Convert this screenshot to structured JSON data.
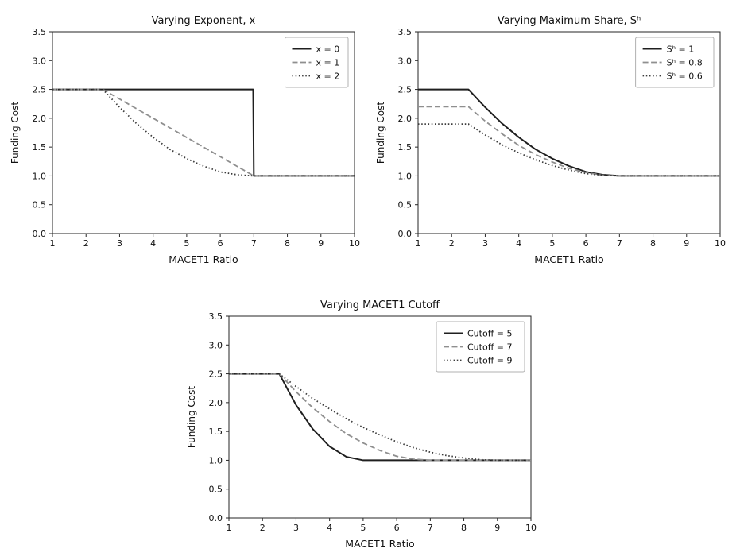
{
  "figure": {
    "background": "#ffffff",
    "text_color": "#111111",
    "spine_color": "#262626",
    "legend_border_color": "#b0b0b0"
  },
  "chart_data": [
    {
      "type": "line",
      "title": "Varying Exponent, x",
      "xlabel": "MACET1 Ratio",
      "ylabel": "Funding Cost",
      "xlim": [
        1,
        10
      ],
      "ylim": [
        0,
        3.5
      ],
      "grid": false,
      "legend_position": "upper right",
      "xticks": [
        1,
        2,
        3,
        4,
        5,
        6,
        7,
        8,
        9,
        10
      ],
      "xtick_labels": [
        "1",
        "2",
        "3",
        "4",
        "5",
        "6",
        "7",
        "8",
        "9",
        "10"
      ],
      "yticks": [
        0,
        0.5,
        1,
        1.5,
        2,
        2.5,
        3,
        3.5
      ],
      "ytick_labels": [
        "0.0",
        "0.5",
        "1.0",
        "1.5",
        "2.0",
        "2.5",
        "3.0",
        "3.5"
      ],
      "series": [
        {
          "name": "x = 0",
          "style": "solid",
          "color": "#1f1f1f",
          "x": [
            1,
            2.5,
            6.98,
            7,
            10
          ],
          "y": [
            2.5,
            2.5,
            2.5,
            1.0,
            1.0
          ]
        },
        {
          "name": "x = 1",
          "style": "dashed",
          "color": "#8f8f8f",
          "x": [
            1,
            2.5,
            7,
            10
          ],
          "y": [
            2.5,
            2.5,
            1.0,
            1.0
          ]
        },
        {
          "name": "x = 2",
          "style": "dotted",
          "color": "#3a3a3a",
          "x": [
            1,
            2.5,
            3,
            3.5,
            4,
            4.5,
            5,
            5.5,
            6,
            6.5,
            7,
            10
          ],
          "y": [
            2.5,
            2.5,
            2.19,
            1.91,
            1.67,
            1.46,
            1.3,
            1.17,
            1.07,
            1.02,
            1.0,
            1.0
          ]
        }
      ]
    },
    {
      "type": "line",
      "title": "Varying Maximum Share, Sʰ",
      "xlabel": "MACET1 Ratio",
      "ylabel": "Funding Cost",
      "xlim": [
        1,
        10
      ],
      "ylim": [
        0,
        3.5
      ],
      "grid": false,
      "legend_position": "upper right",
      "xticks": [
        1,
        2,
        3,
        4,
        5,
        6,
        7,
        8,
        9,
        10
      ],
      "xtick_labels": [
        "1",
        "2",
        "3",
        "4",
        "5",
        "6",
        "7",
        "8",
        "9",
        "10"
      ],
      "yticks": [
        0,
        0.5,
        1,
        1.5,
        2,
        2.5,
        3,
        3.5
      ],
      "ytick_labels": [
        "0.0",
        "0.5",
        "1.0",
        "1.5",
        "2.0",
        "2.5",
        "3.0",
        "3.5"
      ],
      "series": [
        {
          "name": "Sʰ = 1",
          "style": "solid",
          "color": "#1f1f1f",
          "x": [
            1,
            2.5,
            3,
            3.5,
            4,
            4.5,
            5,
            5.5,
            6,
            6.5,
            7,
            10
          ],
          "y": [
            2.5,
            2.5,
            2.19,
            1.91,
            1.67,
            1.46,
            1.3,
            1.17,
            1.07,
            1.02,
            1.0,
            1.0
          ]
        },
        {
          "name": "Sʰ = 0.8",
          "style": "dashed",
          "color": "#8f8f8f",
          "x": [
            1,
            2.5,
            3,
            3.5,
            4,
            4.5,
            5,
            5.5,
            6,
            6.5,
            7,
            10
          ],
          "y": [
            2.2,
            2.2,
            1.95,
            1.73,
            1.53,
            1.37,
            1.24,
            1.13,
            1.06,
            1.01,
            1.0,
            1.0
          ]
        },
        {
          "name": "Sʰ = 0.6",
          "style": "dotted",
          "color": "#3a3a3a",
          "x": [
            1,
            2.5,
            3,
            3.5,
            4,
            4.5,
            5,
            5.5,
            6,
            6.5,
            7,
            10
          ],
          "y": [
            1.9,
            1.9,
            1.71,
            1.54,
            1.4,
            1.28,
            1.18,
            1.1,
            1.04,
            1.01,
            1.0,
            1.0
          ]
        }
      ]
    },
    {
      "type": "line",
      "title": "Varying MACET1 Cutoff",
      "xlabel": "MACET1 Ratio",
      "ylabel": "Funding Cost",
      "xlim": [
        1,
        10
      ],
      "ylim": [
        0,
        3.5
      ],
      "grid": false,
      "legend_position": "upper right",
      "xticks": [
        1,
        2,
        3,
        4,
        5,
        6,
        7,
        8,
        9,
        10
      ],
      "xtick_labels": [
        "1",
        "2",
        "3",
        "4",
        "5",
        "6",
        "7",
        "8",
        "9",
        "10"
      ],
      "yticks": [
        0,
        0.5,
        1,
        1.5,
        2,
        2.5,
        3,
        3.5
      ],
      "ytick_labels": [
        "0.0",
        "0.5",
        "1.0",
        "1.5",
        "2.0",
        "2.5",
        "3.0",
        "3.5"
      ],
      "series": [
        {
          "name": "Cutoff = 5",
          "style": "solid",
          "color": "#1f1f1f",
          "x": [
            1,
            2.5,
            3,
            3.5,
            4,
            4.5,
            5,
            10
          ],
          "y": [
            2.5,
            2.5,
            1.96,
            1.54,
            1.24,
            1.06,
            1.0,
            1.0
          ]
        },
        {
          "name": "Cutoff = 7",
          "style": "dashed",
          "color": "#8f8f8f",
          "x": [
            1,
            2.5,
            3,
            3.5,
            4,
            4.5,
            5,
            5.5,
            6,
            6.5,
            7,
            10
          ],
          "y": [
            2.5,
            2.5,
            2.19,
            1.91,
            1.67,
            1.46,
            1.3,
            1.17,
            1.07,
            1.02,
            1.0,
            1.0
          ]
        },
        {
          "name": "Cutoff = 9",
          "style": "dotted",
          "color": "#3a3a3a",
          "x": [
            1,
            2.5,
            3,
            3.5,
            4,
            4.5,
            5,
            5.5,
            6,
            6.5,
            7,
            7.5,
            8,
            8.5,
            9,
            10
          ],
          "y": [
            2.5,
            2.5,
            2.28,
            2.07,
            1.89,
            1.72,
            1.57,
            1.44,
            1.32,
            1.22,
            1.14,
            1.08,
            1.04,
            1.01,
            1.0,
            1.0
          ]
        }
      ]
    }
  ]
}
